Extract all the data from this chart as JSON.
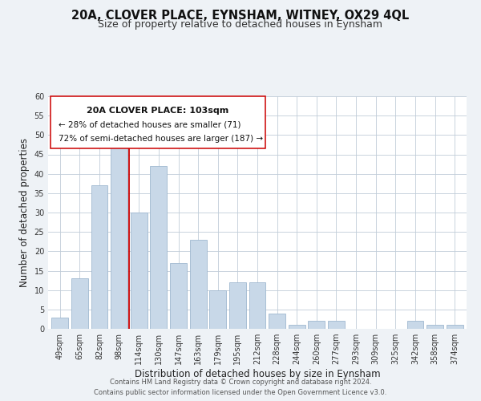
{
  "title": "20A, CLOVER PLACE, EYNSHAM, WITNEY, OX29 4QL",
  "subtitle": "Size of property relative to detached houses in Eynsham",
  "xlabel": "Distribution of detached houses by size in Eynsham",
  "ylabel": "Number of detached properties",
  "categories": [
    "49sqm",
    "65sqm",
    "82sqm",
    "98sqm",
    "114sqm",
    "130sqm",
    "147sqm",
    "163sqm",
    "179sqm",
    "195sqm",
    "212sqm",
    "228sqm",
    "244sqm",
    "260sqm",
    "277sqm",
    "293sqm",
    "309sqm",
    "325sqm",
    "342sqm",
    "358sqm",
    "374sqm"
  ],
  "values": [
    3,
    13,
    37,
    48,
    30,
    42,
    17,
    23,
    10,
    12,
    12,
    4,
    1,
    2,
    2,
    0,
    0,
    0,
    2,
    1,
    1
  ],
  "bar_color": "#c8d8e8",
  "bar_edge_color": "#a0b8d0",
  "vline_x_index": 3.5,
  "vline_color": "#cc0000",
  "ylim": [
    0,
    60
  ],
  "yticks": [
    0,
    5,
    10,
    15,
    20,
    25,
    30,
    35,
    40,
    45,
    50,
    55,
    60
  ],
  "annotation_title": "20A CLOVER PLACE: 103sqm",
  "annotation_line1": "← 28% of detached houses are smaller (71)",
  "annotation_line2": "72% of semi-detached houses are larger (187) →",
  "annotation_box_color": "#ffffff",
  "annotation_box_edge": "#cc0000",
  "footer_line1": "Contains HM Land Registry data © Crown copyright and database right 2024.",
  "footer_line2": "Contains public sector information licensed under the Open Government Licence v3.0.",
  "bg_color": "#eef2f6",
  "plot_bg_color": "#ffffff",
  "grid_color": "#c0ccd8",
  "title_fontsize": 10.5,
  "subtitle_fontsize": 9,
  "axis_label_fontsize": 8.5,
  "tick_fontsize": 7,
  "annotation_title_fontsize": 8,
  "annotation_text_fontsize": 7.5,
  "footer_fontsize": 6
}
